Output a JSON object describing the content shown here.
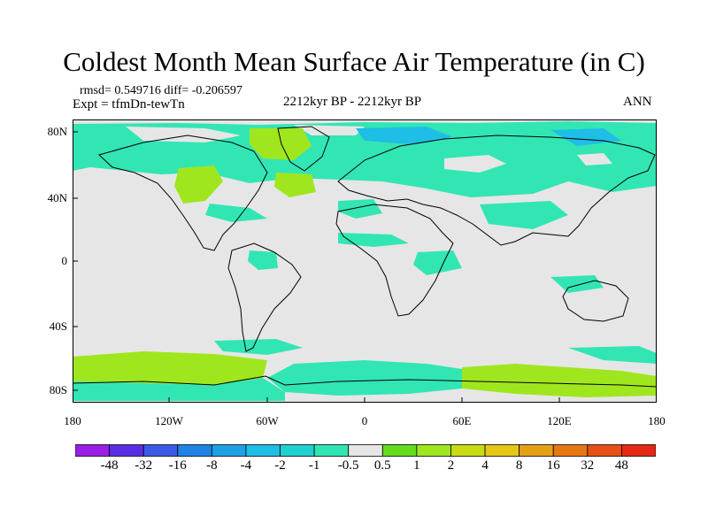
{
  "title": "Coldest Month Mean Surface Air Temperature (in C)",
  "stats": {
    "rmsd_line": "rmsd= 0.549716 diff= -0.206597",
    "expt_line": "Expt = tfmDn-tewTn"
  },
  "period": "2212kyr BP - 2212kyr BP",
  "season": "ANN",
  "latitude_labels": [
    "80N",
    "40N",
    "0",
    "40S",
    "80S"
  ],
  "longitude_labels": [
    "180",
    "120W",
    "60W",
    "0",
    "60E",
    "120E",
    "180"
  ],
  "colorbar": {
    "labels": [
      "-48",
      "-32",
      "-16",
      "-8",
      "-4",
      "-2",
      "-1",
      "-0.5",
      "0.5",
      "1",
      "2",
      "4",
      "8",
      "16",
      "32",
      "48"
    ],
    "colors": [
      "#9a1ee6",
      "#5a2ee6",
      "#3c5ae6",
      "#1e82e6",
      "#1ea0e6",
      "#1ebee6",
      "#1ed2d2",
      "#32e6b4",
      "#e6e6e6",
      "#64dc1e",
      "#a0e61e",
      "#c8dc14",
      "#e6c814",
      "#e6a014",
      "#e67814",
      "#e65014",
      "#e62814"
    ]
  },
  "colors": {
    "neutral": "#e6e6e6",
    "cool_light": "#32e6b4",
    "cool": "#1ed2d2",
    "cool_deep": "#1ebee6",
    "warm": "#a0e61e",
    "warm_light": "#64dc1e"
  }
}
